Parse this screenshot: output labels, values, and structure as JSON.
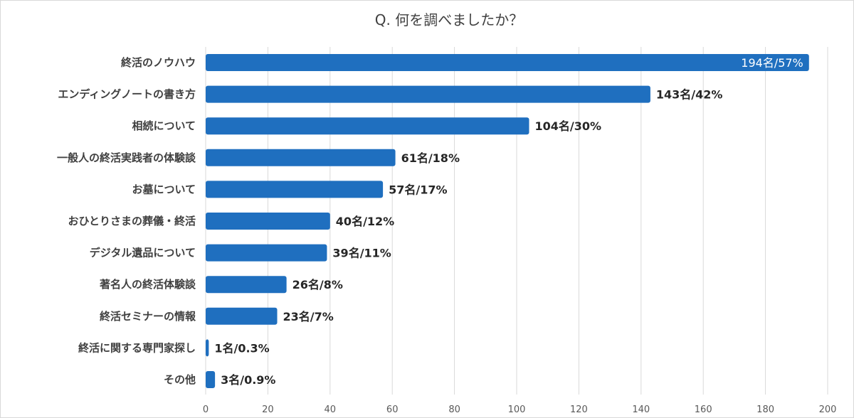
{
  "chart_data": {
    "type": "bar",
    "orientation": "horizontal",
    "title": "Q. 何を調べましたか？",
    "categories": [
      "終活のノウハウ",
      "エンディングノートの書き方",
      "相続について",
      "一般人の終活実践者の体験談",
      "お墓について",
      "おひとりさまの葬儀・終活",
      "デジタル遺品について",
      "著名人の終活体験談",
      "終活セミナーの情報",
      "終活に関する専門家探し",
      "その他"
    ],
    "values": [
      194,
      143,
      104,
      61,
      57,
      40,
      39,
      26,
      23,
      1,
      3
    ],
    "data_labels": [
      "194名/57%",
      "143名/42%",
      "104名/30%",
      "61名/18%",
      "57名/17%",
      "40名/12%",
      "39名/11%",
      "26名/8%",
      "23名/7%",
      "1名/0.3%",
      "3名/0.9%"
    ],
    "x_ticks": [
      "0",
      "20",
      "40",
      "60",
      "80",
      "100",
      "120",
      "140",
      "160",
      "180",
      "200"
    ],
    "xlim": [
      0,
      200
    ],
    "xlabel": "",
    "ylabel": "",
    "grid": "vertical",
    "legend": "none",
    "bar_color": "#1f6fbf"
  }
}
